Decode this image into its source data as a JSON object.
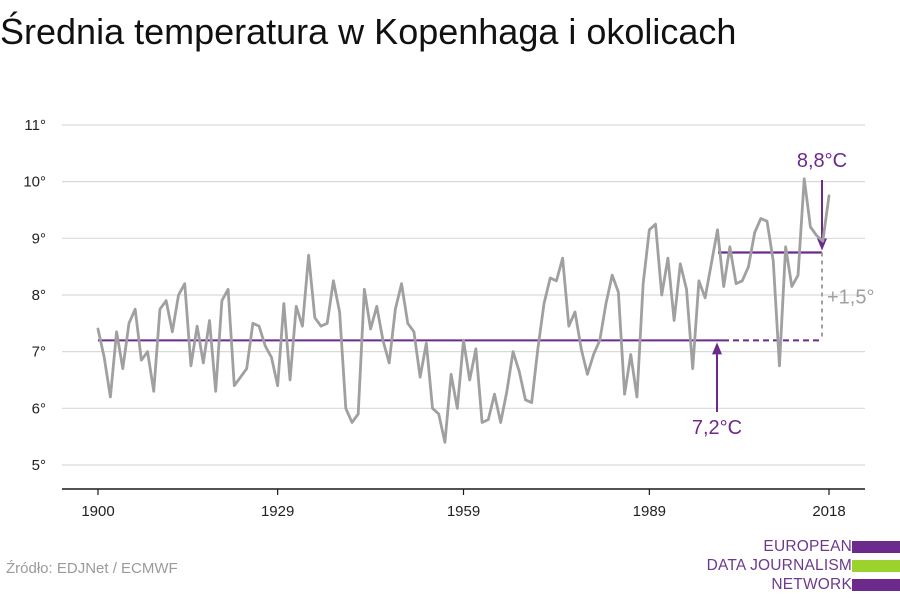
{
  "title": "Średnia temperatura w Kopenhaga i okolicach",
  "source": "Źródło: EDJNet / ECMWF",
  "logo": {
    "lines": [
      "EUROPEAN",
      "DATA JOURNALISM",
      "NETWORK"
    ]
  },
  "colors": {
    "series": "#a0a0a0",
    "accent": "#6b2a8c",
    "grid": "#d9d9d9",
    "axis": "#1a1a1a",
    "delta": "#a0a0a0",
    "logo_green": "#9bd22d"
  },
  "chart_data": {
    "type": "line",
    "title": "Średnia temperatura w Kopenhaga i okolicach",
    "xlabel": "",
    "ylabel": "",
    "xlim": [
      1900,
      2018
    ],
    "ylim": [
      4.7,
      11.3
    ],
    "x_ticks": [
      1900,
      1929,
      1959,
      1989,
      2018
    ],
    "y_ticks": [
      5,
      6,
      7,
      8,
      9,
      10,
      11
    ],
    "y_tick_labels": [
      "5°",
      "6°",
      "7°",
      "8°",
      "9°",
      "10°",
      "11°"
    ],
    "grid": true,
    "x": [
      1900,
      1901,
      1902,
      1903,
      1904,
      1905,
      1906,
      1907,
      1908,
      1909,
      1910,
      1911,
      1912,
      1913,
      1914,
      1915,
      1916,
      1917,
      1918,
      1919,
      1920,
      1921,
      1922,
      1923,
      1924,
      1925,
      1926,
      1927,
      1928,
      1929,
      1930,
      1931,
      1932,
      1933,
      1934,
      1935,
      1936,
      1937,
      1938,
      1939,
      1940,
      1941,
      1942,
      1943,
      1944,
      1945,
      1946,
      1947,
      1948,
      1949,
      1950,
      1951,
      1952,
      1953,
      1954,
      1955,
      1956,
      1957,
      1958,
      1959,
      1960,
      1961,
      1962,
      1963,
      1964,
      1965,
      1966,
      1967,
      1968,
      1969,
      1970,
      1971,
      1972,
      1973,
      1974,
      1975,
      1976,
      1977,
      1978,
      1979,
      1980,
      1981,
      1982,
      1983,
      1984,
      1985,
      1986,
      1987,
      1988,
      1989,
      1990,
      1991,
      1992,
      1993,
      1994,
      1995,
      1996,
      1997,
      1998,
      1999,
      2000,
      2001,
      2002,
      2003,
      2004,
      2005,
      2006,
      2007,
      2008,
      2009,
      2010,
      2011,
      2012,
      2013,
      2014,
      2015,
      2016,
      2017,
      2018
    ],
    "series": [
      {
        "values": [
          7.4,
          6.9,
          6.2,
          7.35,
          6.7,
          7.5,
          7.75,
          6.85,
          7.0,
          6.3,
          7.75,
          7.9,
          7.35,
          8.0,
          8.2,
          6.75,
          7.45,
          6.8,
          7.55,
          6.3,
          7.9,
          8.1,
          6.4,
          6.55,
          6.7,
          7.5,
          7.45,
          7.1,
          6.9,
          6.4,
          7.85,
          6.5,
          7.8,
          7.45,
          8.7,
          7.6,
          7.45,
          7.5,
          8.25,
          7.7,
          6.0,
          5.75,
          5.9,
          8.1,
          7.4,
          7.8,
          7.2,
          6.8,
          7.75,
          8.2,
          7.5,
          7.35,
          6.55,
          7.15,
          6.0,
          5.9,
          5.4,
          6.6,
          6.0,
          7.2,
          6.5,
          7.05,
          5.75,
          5.8,
          6.25,
          5.75,
          6.3,
          7.0,
          6.65,
          6.15,
          6.1,
          7.05,
          7.85,
          8.3,
          8.25,
          8.65,
          7.45,
          7.7,
          7.05,
          6.6,
          6.95,
          7.2,
          7.85,
          8.35,
          8.05,
          6.25,
          6.95,
          6.2,
          8.2,
          9.15,
          9.25,
          8.0,
          8.65,
          7.55,
          8.55,
          8.1,
          6.7,
          8.25,
          7.95,
          8.55,
          9.15,
          8.15,
          8.85,
          8.2,
          8.25,
          8.5,
          9.1,
          9.35,
          9.3,
          8.6,
          6.75,
          8.85,
          8.15,
          8.35,
          10.05,
          9.2,
          9.05,
          8.95,
          9.75
        ]
      }
    ],
    "annotations": [
      {
        "type": "baseline",
        "label": "7,2°C",
        "value": 7.2,
        "x_from": 1900,
        "x_to": 2000
      },
      {
        "type": "recent",
        "label": "8,8°C",
        "value": 8.75,
        "x_from": 2000,
        "x_to": 2017
      },
      {
        "type": "delta",
        "label": "+1,5°"
      }
    ]
  }
}
